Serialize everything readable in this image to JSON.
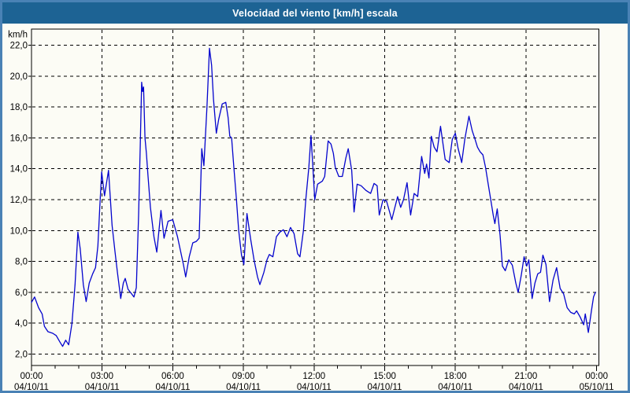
{
  "title": "Velocidad del viento [km/h] escala",
  "colors": {
    "titlebar_bg": "#1d6394",
    "title_text": "#ffffff",
    "frame_border": "#4a82b5",
    "panel_bg": "#fcfcf5",
    "line": "#0404cd",
    "grid": "#000000",
    "text": "#000000"
  },
  "chart_data": {
    "type": "line",
    "title": "Velocidad del viento [km/h] escala",
    "grid": "dashed",
    "legend": "none",
    "y_axis": {
      "unit": "km/h",
      "range_labeled": [
        2.0,
        22.0
      ],
      "tick_step": 2.0,
      "ticks": [
        {
          "value": 22,
          "label": "22,0"
        },
        {
          "value": 20,
          "label": "20,0"
        },
        {
          "value": 18,
          "label": "18,0"
        },
        {
          "value": 16,
          "label": "16,0"
        },
        {
          "value": 14,
          "label": "14,0"
        },
        {
          "value": 12,
          "label": "12,0"
        },
        {
          "value": 10,
          "label": "10,0"
        },
        {
          "value": 8,
          "label": "8,0"
        },
        {
          "value": 6,
          "label": "6,0"
        },
        {
          "value": 4,
          "label": "4,0"
        },
        {
          "value": 2,
          "label": "2,0"
        }
      ]
    },
    "x_axis": {
      "range_hours": [
        0,
        24
      ],
      "major_tick_every_hours": 3,
      "minor_tick_every_hours": 1,
      "ticks": [
        {
          "time": "00:00",
          "date": "04/10/11"
        },
        {
          "time": "03:00",
          "date": "04/10/11"
        },
        {
          "time": "06:00",
          "date": "04/10/11"
        },
        {
          "time": "09:00",
          "date": "04/10/11"
        },
        {
          "time": "12:00",
          "date": "04/10/11"
        },
        {
          "time": "15:00",
          "date": "04/10/11"
        },
        {
          "time": "18:00",
          "date": "04/10/11"
        },
        {
          "time": "21:00",
          "date": "04/10/11"
        },
        {
          "time": "00:00",
          "date": "05/10/11"
        }
      ]
    },
    "series": [
      {
        "name": "Velocidad del viento",
        "color": "#0404cd",
        "points": [
          [
            0.0,
            5.35
          ],
          [
            0.13,
            5.7
          ],
          [
            0.3,
            5.0
          ],
          [
            0.45,
            4.6
          ],
          [
            0.55,
            3.8
          ],
          [
            0.7,
            3.45
          ],
          [
            0.9,
            3.35
          ],
          [
            1.05,
            3.2
          ],
          [
            1.2,
            2.8
          ],
          [
            1.32,
            2.5
          ],
          [
            1.45,
            2.9
          ],
          [
            1.58,
            2.6
          ],
          [
            1.72,
            4.0
          ],
          [
            1.85,
            6.5
          ],
          [
            1.97,
            9.9
          ],
          [
            2.07,
            8.8
          ],
          [
            2.2,
            6.5
          ],
          [
            2.32,
            5.4
          ],
          [
            2.45,
            6.6
          ],
          [
            2.6,
            7.2
          ],
          [
            2.72,
            7.6
          ],
          [
            2.82,
            9.0
          ],
          [
            2.9,
            11.5
          ],
          [
            2.98,
            13.8
          ],
          [
            3.1,
            12.25
          ],
          [
            3.27,
            13.9
          ],
          [
            3.42,
            10.35
          ],
          [
            3.55,
            8.6
          ],
          [
            3.65,
            7.3
          ],
          [
            3.79,
            5.6
          ],
          [
            3.9,
            6.6
          ],
          [
            3.98,
            6.9
          ],
          [
            4.1,
            6.2
          ],
          [
            4.25,
            5.9
          ],
          [
            4.35,
            5.7
          ],
          [
            4.45,
            6.3
          ],
          [
            4.55,
            11.0
          ],
          [
            4.62,
            15.5
          ],
          [
            4.68,
            19.6
          ],
          [
            4.72,
            19.0
          ],
          [
            4.76,
            19.3
          ],
          [
            4.82,
            16.0
          ],
          [
            4.88,
            15.0
          ],
          [
            4.95,
            13.5
          ],
          [
            5.05,
            11.5
          ],
          [
            5.2,
            9.6
          ],
          [
            5.32,
            8.6
          ],
          [
            5.5,
            11.3
          ],
          [
            5.63,
            9.5
          ],
          [
            5.8,
            10.6
          ],
          [
            6.0,
            10.7
          ],
          [
            6.2,
            9.6
          ],
          [
            6.45,
            7.8
          ],
          [
            6.55,
            7.0
          ],
          [
            6.7,
            8.3
          ],
          [
            6.85,
            9.2
          ],
          [
            7.0,
            9.3
          ],
          [
            7.12,
            9.5
          ],
          [
            7.23,
            15.3
          ],
          [
            7.32,
            14.2
          ],
          [
            7.45,
            18.0
          ],
          [
            7.56,
            21.8
          ],
          [
            7.65,
            20.7
          ],
          [
            7.73,
            18.5
          ],
          [
            7.85,
            16.3
          ],
          [
            7.95,
            17.2
          ],
          [
            8.1,
            18.2
          ],
          [
            8.25,
            18.3
          ],
          [
            8.35,
            17.3
          ],
          [
            8.42,
            16.1
          ],
          [
            8.5,
            16.0
          ],
          [
            8.6,
            14.0
          ],
          [
            8.7,
            12.1
          ],
          [
            8.8,
            10.0
          ],
          [
            8.92,
            8.4
          ],
          [
            9.02,
            7.8
          ],
          [
            9.15,
            11.1
          ],
          [
            9.3,
            9.5
          ],
          [
            9.45,
            8.1
          ],
          [
            9.6,
            7.0
          ],
          [
            9.7,
            6.5
          ],
          [
            9.87,
            7.3
          ],
          [
            10.0,
            8.1
          ],
          [
            10.1,
            8.45
          ],
          [
            10.25,
            8.3
          ],
          [
            10.4,
            9.6
          ],
          [
            10.55,
            9.9
          ],
          [
            10.7,
            10.05
          ],
          [
            10.85,
            9.6
          ],
          [
            11.0,
            10.2
          ],
          [
            11.15,
            9.8
          ],
          [
            11.3,
            8.5
          ],
          [
            11.4,
            8.3
          ],
          [
            11.55,
            10.0
          ],
          [
            11.65,
            12.0
          ],
          [
            11.78,
            14.1
          ],
          [
            11.87,
            16.15
          ],
          [
            11.95,
            14.1
          ],
          [
            12.03,
            12.0
          ],
          [
            12.15,
            13.0
          ],
          [
            12.35,
            13.2
          ],
          [
            12.45,
            13.5
          ],
          [
            12.6,
            15.8
          ],
          [
            12.72,
            15.6
          ],
          [
            12.82,
            15.0
          ],
          [
            12.9,
            14.1
          ],
          [
            13.05,
            13.5
          ],
          [
            13.2,
            13.5
          ],
          [
            13.35,
            14.7
          ],
          [
            13.45,
            15.3
          ],
          [
            13.6,
            13.9
          ],
          [
            13.7,
            11.2
          ],
          [
            13.83,
            13.0
          ],
          [
            14.0,
            12.9
          ],
          [
            14.2,
            12.6
          ],
          [
            14.4,
            12.4
          ],
          [
            14.55,
            13.05
          ],
          [
            14.68,
            12.9
          ],
          [
            14.77,
            11.0
          ],
          [
            14.93,
            12.0
          ],
          [
            15.08,
            11.9
          ],
          [
            15.3,
            10.7
          ],
          [
            15.55,
            12.2
          ],
          [
            15.68,
            11.5
          ],
          [
            15.8,
            12.0
          ],
          [
            15.95,
            13.1
          ],
          [
            16.1,
            11.0
          ],
          [
            16.25,
            12.4
          ],
          [
            16.4,
            12.2
          ],
          [
            16.57,
            14.8
          ],
          [
            16.7,
            13.7
          ],
          [
            16.78,
            14.3
          ],
          [
            16.88,
            13.4
          ],
          [
            16.98,
            16.1
          ],
          [
            17.1,
            15.4
          ],
          [
            17.22,
            15.1
          ],
          [
            17.37,
            16.75
          ],
          [
            17.57,
            14.6
          ],
          [
            17.74,
            14.4
          ],
          [
            17.87,
            15.9
          ],
          [
            18.0,
            16.3
          ],
          [
            18.12,
            15.3
          ],
          [
            18.27,
            14.4
          ],
          [
            18.4,
            15.9
          ],
          [
            18.58,
            17.4
          ],
          [
            18.72,
            16.45
          ],
          [
            18.83,
            15.95
          ],
          [
            18.94,
            15.4
          ],
          [
            19.05,
            15.1
          ],
          [
            19.17,
            14.9
          ],
          [
            19.28,
            14.1
          ],
          [
            19.39,
            13.05
          ],
          [
            19.5,
            12.05
          ],
          [
            19.61,
            11.0
          ],
          [
            19.68,
            10.45
          ],
          [
            19.78,
            11.4
          ],
          [
            19.9,
            9.7
          ],
          [
            20.0,
            7.7
          ],
          [
            20.12,
            7.4
          ],
          [
            20.27,
            8.1
          ],
          [
            20.42,
            7.75
          ],
          [
            20.57,
            6.6
          ],
          [
            20.67,
            6.0
          ],
          [
            20.8,
            7.1
          ],
          [
            20.92,
            8.3
          ],
          [
            21.03,
            7.7
          ],
          [
            21.12,
            8.1
          ],
          [
            21.26,
            5.6
          ],
          [
            21.38,
            6.6
          ],
          [
            21.5,
            7.2
          ],
          [
            21.62,
            7.3
          ],
          [
            21.72,
            8.4
          ],
          [
            21.85,
            7.8
          ],
          [
            22.0,
            5.4
          ],
          [
            22.15,
            6.8
          ],
          [
            22.3,
            7.6
          ],
          [
            22.45,
            6.25
          ],
          [
            22.6,
            5.9
          ],
          [
            22.75,
            5.0
          ],
          [
            22.9,
            4.7
          ],
          [
            23.05,
            4.6
          ],
          [
            23.15,
            4.8
          ],
          [
            23.3,
            4.4
          ],
          [
            23.45,
            3.9
          ],
          [
            23.52,
            4.6
          ],
          [
            23.65,
            3.4
          ],
          [
            23.78,
            4.8
          ],
          [
            23.87,
            5.7
          ],
          [
            23.95,
            6.0
          ]
        ]
      }
    ]
  }
}
